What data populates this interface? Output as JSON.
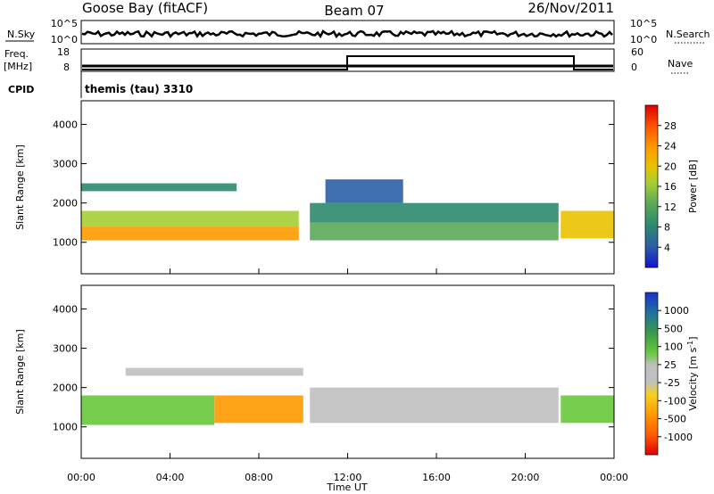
{
  "header": {
    "station": "Goose Bay (fitACF)",
    "beam": "Beam 07",
    "date": "26/Nov/2011"
  },
  "summary_panels": {
    "nsky_label": "N.Sky",
    "nsearch_label": "N.Search",
    "nsky_ticks": [
      "10^5",
      "10^0"
    ],
    "nsearch_ticks": [
      "10^5",
      "10^0"
    ],
    "freq_label_1": "Freq.",
    "freq_label_2": "[MHz]",
    "freq_ticks": [
      "18",
      "8"
    ],
    "nave_label": "Nave",
    "nave_ticks": [
      "60",
      "0"
    ],
    "cpid_label": "CPID",
    "cpid_value": "themis (tau) 3310"
  },
  "chart_data": [
    {
      "type": "heatmap",
      "name": "power",
      "xlabel": "",
      "ylabel": "Slant Range [km]",
      "xlim": [
        0,
        24
      ],
      "ylim": [
        200,
        4600
      ],
      "yticks": [
        "1000",
        "2000",
        "3000",
        "4000"
      ],
      "colorbar": {
        "label": "Power [dB]",
        "ticks": [
          "28",
          "24",
          "20",
          "16",
          "12",
          "8",
          "4"
        ],
        "colors": [
          "#e00000",
          "#ff5a00",
          "#ff9a00",
          "#e9c200",
          "#a5cf35",
          "#5aa85a",
          "#2c8a6e",
          "#2a5fa6",
          "#1313d0"
        ]
      },
      "bands": [
        {
          "t0": 0.0,
          "t1": 9.8,
          "r0": 1050,
          "r1": 1400,
          "level": 22
        },
        {
          "t0": 0.0,
          "t1": 9.8,
          "r0": 1400,
          "r1": 1800,
          "level": 14
        },
        {
          "t0": 0.0,
          "t1": 7.0,
          "r0": 2300,
          "r1": 2500,
          "level": 6
        },
        {
          "t0": 10.3,
          "t1": 21.5,
          "r0": 1050,
          "r1": 1500,
          "level": 12
        },
        {
          "t0": 10.3,
          "t1": 21.5,
          "r0": 1500,
          "r1": 2000,
          "level": 8
        },
        {
          "t0": 11.0,
          "t1": 14.5,
          "r0": 2000,
          "r1": 2600,
          "level": 5
        },
        {
          "t0": 21.6,
          "t1": 24.0,
          "r0": 1100,
          "r1": 1800,
          "level": 18
        }
      ]
    },
    {
      "type": "heatmap",
      "name": "velocity",
      "xlabel": "Time UT",
      "ylabel": "Slant Range [km]",
      "xlim": [
        0,
        24
      ],
      "ylim": [
        200,
        4600
      ],
      "xticks": [
        "00:00",
        "04:00",
        "08:00",
        "12:00",
        "16:00",
        "20:00",
        "00:00"
      ],
      "yticks": [
        "1000",
        "2000",
        "3000",
        "4000"
      ],
      "colorbar": {
        "label": "Velocity [m s^-1]",
        "ticks": [
          "1000",
          "500",
          "100",
          "25",
          "-25",
          "-100",
          "-500",
          "-1000"
        ],
        "colors": [
          "#1a2fd0",
          "#1e6fa0",
          "#3a9a4a",
          "#68c83a",
          "#c0c0c0",
          "#f5d020",
          "#ff9a00",
          "#ff5a00",
          "#e00000"
        ]
      },
      "bands": [
        {
          "t0": 0.0,
          "t1": 6.0,
          "r0": 1050,
          "r1": 1800,
          "level": 100
        },
        {
          "t0": 6.0,
          "t1": 10.0,
          "r0": 1100,
          "r1": 1800,
          "level": -100
        },
        {
          "t0": 2.0,
          "t1": 10.0,
          "r0": 2300,
          "r1": 2500,
          "level": 0
        },
        {
          "t0": 10.3,
          "t1": 21.5,
          "r0": 1100,
          "r1": 2000,
          "level": 0
        },
        {
          "t0": 21.6,
          "t1": 24.0,
          "r0": 1100,
          "r1": 1800,
          "level": 100
        }
      ]
    }
  ]
}
